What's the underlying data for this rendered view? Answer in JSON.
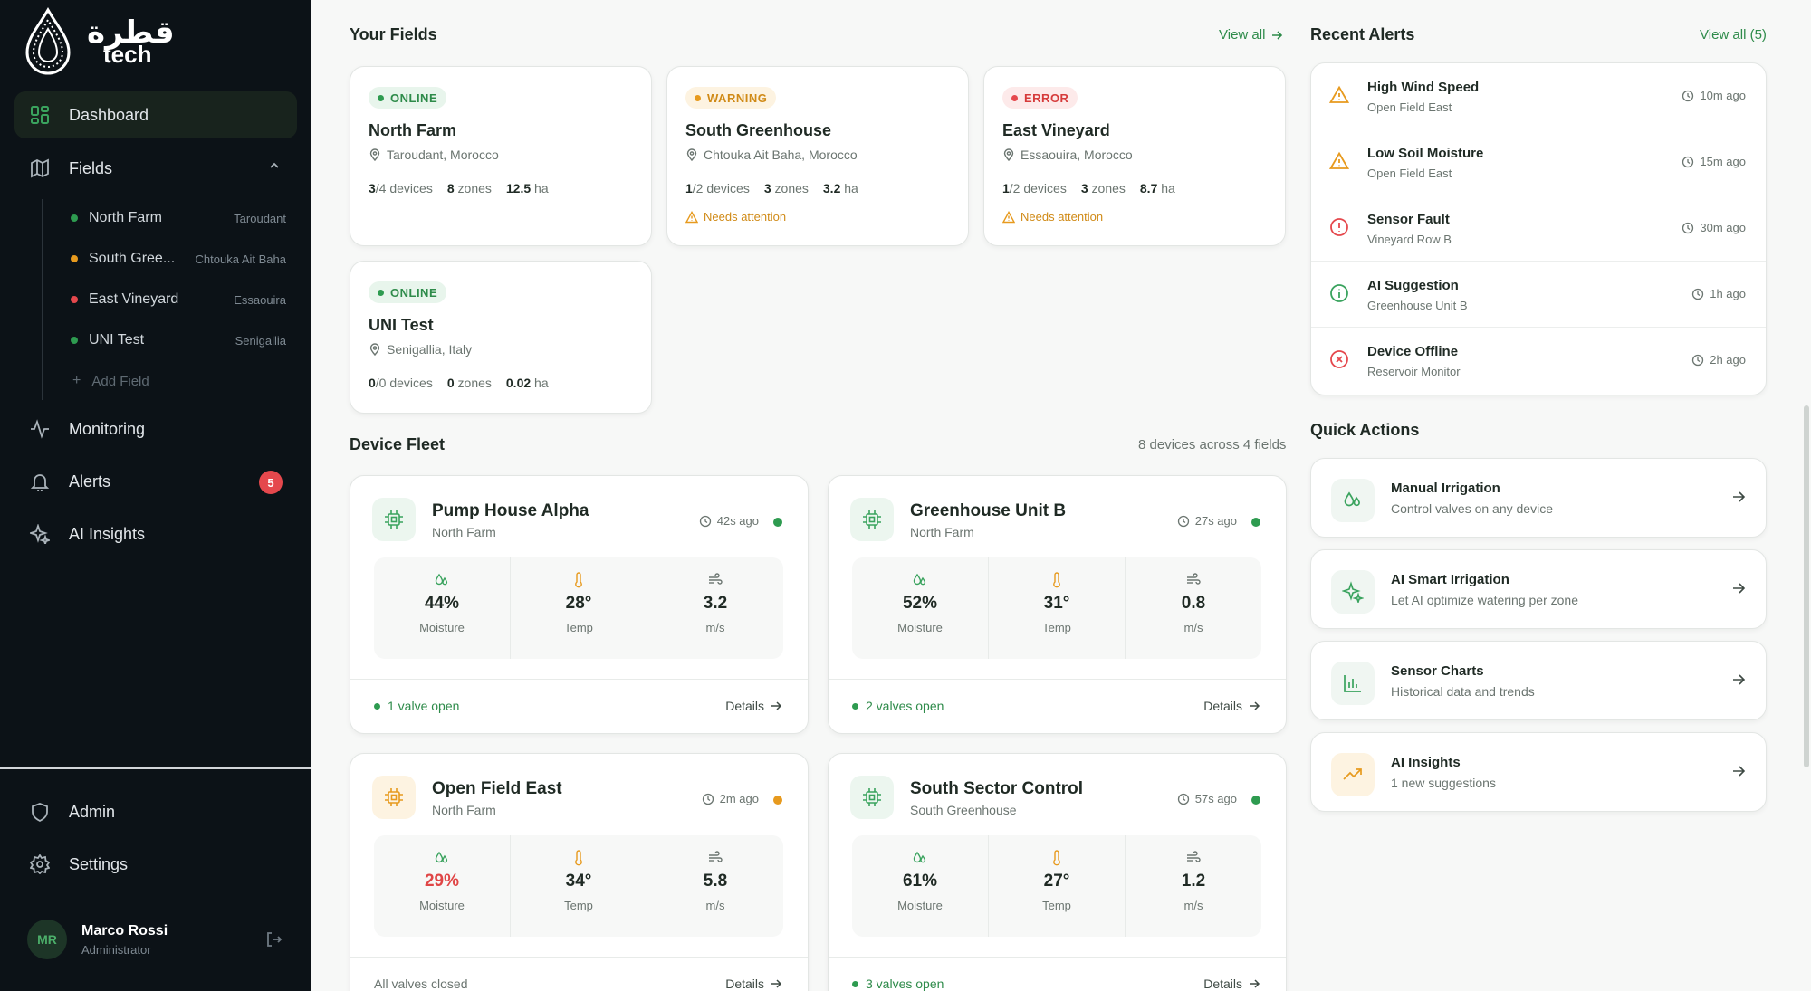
{
  "brand": {
    "arabic": "قطرة",
    "latin": "tech"
  },
  "nav": {
    "dashboard": "Dashboard",
    "fields": "Fields",
    "monitoring": "Monitoring",
    "alerts": "Alerts",
    "alerts_badge": "5",
    "ai_insights": "AI Insights",
    "admin": "Admin",
    "settings": "Settings"
  },
  "field_tree": [
    {
      "name": "North Farm",
      "loc": "Taroudant",
      "color": "#2e9b50"
    },
    {
      "name": "South Gree...",
      "loc": "Chtouka Ait Baha",
      "color": "#e79a1e"
    },
    {
      "name": "East Vineyard",
      "loc": "Essaouira",
      "color": "#e5484d"
    },
    {
      "name": "UNI Test",
      "loc": "Senigallia",
      "color": "#2e9b50"
    }
  ],
  "add_field": "Add Field",
  "user": {
    "initials": "MR",
    "name": "Marco Rossi",
    "role": "Administrator"
  },
  "your_fields": {
    "title": "Your Fields",
    "view_all": "View all"
  },
  "fields": [
    {
      "status": "ONLINE",
      "name": "North Farm",
      "loc": "Taroudant, Morocco",
      "devices_on": "3",
      "devices_total": "/4 devices",
      "zones": "8",
      "zones_label": " zones",
      "area": "12.5",
      "area_unit": " ha",
      "attention": ""
    },
    {
      "status": "WARNING",
      "name": "South Greenhouse",
      "loc": "Chtouka Ait Baha, Morocco",
      "devices_on": "1",
      "devices_total": "/2 devices",
      "zones": "3",
      "zones_label": " zones",
      "area": "3.2",
      "area_unit": " ha",
      "attention": "Needs attention"
    },
    {
      "status": "ERROR",
      "name": "East Vineyard",
      "loc": "Essaouira, Morocco",
      "devices_on": "1",
      "devices_total": "/2 devices",
      "zones": "3",
      "zones_label": " zones",
      "area": "8.7",
      "area_unit": " ha",
      "attention": "Needs attention"
    },
    {
      "status": "ONLINE",
      "name": "UNI Test",
      "loc": "Senigallia, Italy",
      "devices_on": "0",
      "devices_total": "/0 devices",
      "zones": "0",
      "zones_label": " zones",
      "area": "0.02",
      "area_unit": " ha",
      "attention": ""
    }
  ],
  "device_fleet": {
    "title": "Device Fleet",
    "summary": "8 devices across 4 fields"
  },
  "devices": [
    {
      "name": "Pump House Alpha",
      "field": "North Farm",
      "time": "42s ago",
      "moisture": "44%",
      "temp": "28°",
      "wind": "3.2",
      "valves": "1 valve open",
      "details": "Details"
    },
    {
      "name": "Greenhouse Unit B",
      "field": "North Farm",
      "time": "27s ago",
      "moisture": "52%",
      "temp": "31°",
      "wind": "0.8",
      "valves": "2 valves open",
      "details": "Details"
    },
    {
      "name": "Open Field East",
      "field": "North Farm",
      "time": "2m ago",
      "moisture": "29%",
      "temp": "34°",
      "wind": "5.8",
      "valves": "All valves closed",
      "details": "Details"
    },
    {
      "name": "South Sector Control",
      "field": "South Greenhouse",
      "time": "57s ago",
      "moisture": "61%",
      "temp": "27°",
      "wind": "1.2",
      "valves": "3 valves open",
      "details": "Details"
    }
  ],
  "metric_labels": {
    "moisture": "Moisture",
    "temp": "Temp",
    "wind": "m/s"
  },
  "recent_alerts": {
    "title": "Recent Alerts",
    "view_all": "View all (5)"
  },
  "alerts": [
    {
      "title": "High Wind Speed",
      "sub": "Open Field East",
      "time": "10m ago",
      "icon": "warning-icon"
    },
    {
      "title": "Low Soil Moisture",
      "sub": "Open Field East",
      "time": "15m ago",
      "icon": "warning-icon"
    },
    {
      "title": "Sensor Fault",
      "sub": "Vineyard Row B",
      "time": "30m ago",
      "icon": "error-circle-icon"
    },
    {
      "title": "AI Suggestion",
      "sub": "Greenhouse Unit B",
      "time": "1h ago",
      "icon": "info-icon"
    },
    {
      "title": "Device Offline",
      "sub": "Reservoir Monitor",
      "time": "2h ago",
      "icon": "x-circle-icon"
    }
  ],
  "quick_actions": {
    "title": "Quick Actions",
    "items": [
      {
        "title": "Manual Irrigation",
        "sub": "Control valves on any device"
      },
      {
        "title": "AI Smart Irrigation",
        "sub": "Let AI optimize watering per zone"
      },
      {
        "title": "Sensor Charts",
        "sub": "Historical data and trends"
      },
      {
        "title": "AI Insights",
        "sub": "1 new suggestions"
      }
    ]
  },
  "colors": {
    "accent": "#2e8b4a",
    "warning": "#e79a1e",
    "error": "#e5484d",
    "sidebar": "#0c1217"
  }
}
